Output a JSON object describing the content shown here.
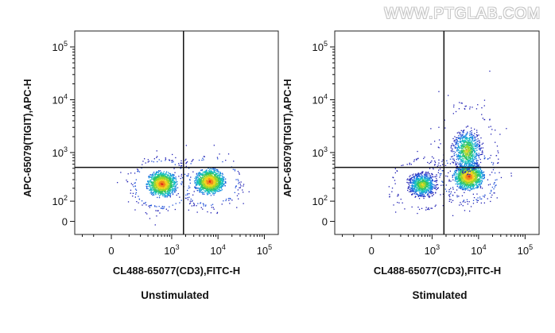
{
  "watermark": "WWW.PTGLAB.COM",
  "chart_data": [
    {
      "type": "scatter",
      "subtype": "flow-cytometry density plot with quadrant gates",
      "title": "Unstimulated",
      "xlabel": "CL488-65077(CD3),FITC-H",
      "ylabel": "APC-65079(TIGIT),APC-H",
      "x_scale": "biexponential",
      "y_scale": "biexponential",
      "x_ticks": [
        {
          "label": "0",
          "value": 0
        },
        {
          "label": "10^3",
          "value": 1000
        },
        {
          "label": "10^4",
          "value": 10000
        },
        {
          "label": "10^5",
          "value": 100000
        }
      ],
      "y_ticks": [
        {
          "label": "0",
          "value": 0
        },
        {
          "label": "10^2",
          "value": 100
        },
        {
          "label": "10^3",
          "value": 1000
        },
        {
          "label": "10^4",
          "value": 10000
        },
        {
          "label": "10^5",
          "value": 100000
        }
      ],
      "xlim": [
        -300,
        200000
      ],
      "ylim": [
        -60,
        200000
      ],
      "gate": {
        "x": 1800,
        "y": 520
      },
      "populations": [
        {
          "x_center": 600,
          "y_center": 250,
          "density": "high"
        },
        {
          "x_center": 6500,
          "y_center": 280,
          "density": "high"
        }
      ]
    },
    {
      "type": "scatter",
      "subtype": "flow-cytometry density plot with quadrant gates",
      "title": "Stimulated",
      "xlabel": "CL488-65077(CD3),FITC-H",
      "ylabel": "APC-65079(TIGIT),APC-H",
      "x_scale": "biexponential",
      "y_scale": "biexponential",
      "x_ticks": [
        {
          "label": "0",
          "value": 0
        },
        {
          "label": "10^3",
          "value": 1000
        },
        {
          "label": "10^4",
          "value": 10000
        },
        {
          "label": "10^5",
          "value": 100000
        }
      ],
      "y_ticks": [
        {
          "label": "0",
          "value": 0
        },
        {
          "label": "10^2",
          "value": 100
        },
        {
          "label": "10^3",
          "value": 1000
        },
        {
          "label": "10^4",
          "value": 10000
        },
        {
          "label": "10^5",
          "value": 100000
        }
      ],
      "xlim": [
        -300,
        200000
      ],
      "ylim": [
        -60,
        200000
      ],
      "gate": {
        "x": 1800,
        "y": 520
      },
      "populations": [
        {
          "x_center": 600,
          "y_center": 240,
          "density": "medium"
        },
        {
          "x_center": 6000,
          "y_center": 350,
          "density": "high"
        },
        {
          "x_center": 5500,
          "y_center": 1100,
          "density": "medium"
        }
      ]
    }
  ]
}
